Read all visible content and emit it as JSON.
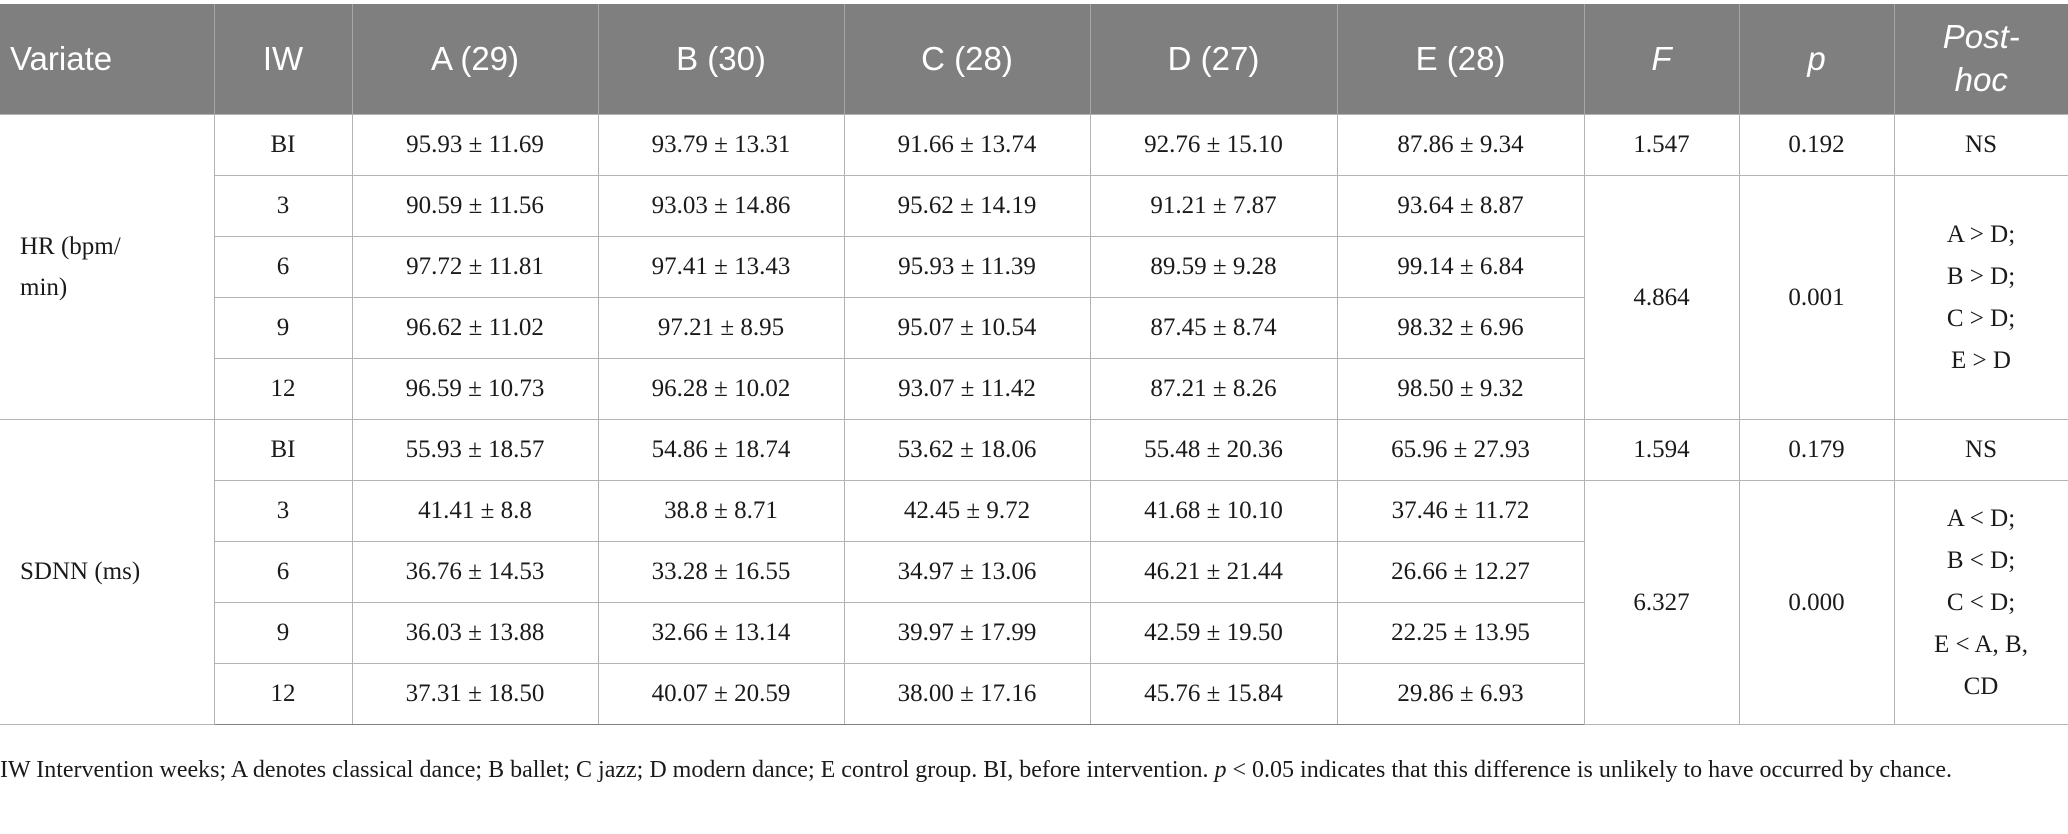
{
  "headers": [
    "Variate",
    "IW",
    "A (29)",
    "B (30)",
    "C (28)",
    "D (27)",
    "E (28)",
    "F",
    "p",
    "Post-hoc"
  ],
  "groups": [
    {
      "variate_lines": [
        "HR (bpm/",
        "min)"
      ],
      "rows": [
        {
          "iw": "BI",
          "a": "95.93 ± 11.69",
          "b": "93.79 ± 13.31",
          "c": "91.66 ± 13.74",
          "d": "92.76 ± 15.10",
          "e": "87.86 ± 9.34"
        },
        {
          "iw": "3",
          "a": "90.59 ± 11.56",
          "b": "93.03 ± 14.86",
          "c": "95.62 ± 14.19",
          "d": "91.21 ± 7.87",
          "e": "93.64 ± 8.87"
        },
        {
          "iw": "6",
          "a": "97.72 ± 11.81",
          "b": "97.41 ± 13.43",
          "c": "95.93 ± 11.39",
          "d": "89.59 ± 9.28",
          "e": "99.14 ± 6.84"
        },
        {
          "iw": "9",
          "a": "96.62 ± 11.02",
          "b": "97.21 ± 8.95",
          "c": "95.07 ± 10.54",
          "d": "87.45 ± 8.74",
          "e": "98.32 ± 6.96"
        },
        {
          "iw": "12",
          "a": "96.59 ± 10.73",
          "b": "96.28 ± 10.02",
          "c": "93.07 ± 11.42",
          "d": "87.21 ± 8.26",
          "e": "98.50 ± 9.32"
        }
      ],
      "bi_stats": {
        "f": "1.547",
        "p": "0.192",
        "posthoc": "NS"
      },
      "post_stats": {
        "f": "4.864",
        "p": "0.001",
        "posthoc_lines": [
          "A > D;",
          "B > D;",
          "C > D;",
          "E > D"
        ]
      }
    },
    {
      "variate_lines": [
        "SDNN (ms)"
      ],
      "rows": [
        {
          "iw": "BI",
          "a": "55.93 ± 18.57",
          "b": "54.86 ± 18.74",
          "c": "53.62 ± 18.06",
          "d": "55.48 ± 20.36",
          "e": "65.96 ± 27.93"
        },
        {
          "iw": "3",
          "a": "41.41 ± 8.8",
          "b": "38.8 ± 8.71",
          "c": "42.45 ± 9.72",
          "d": "41.68 ± 10.10",
          "e": "37.46 ± 11.72"
        },
        {
          "iw": "6",
          "a": "36.76 ± 14.53",
          "b": "33.28 ± 16.55",
          "c": "34.97 ± 13.06",
          "d": "46.21 ± 21.44",
          "e": "26.66 ± 12.27"
        },
        {
          "iw": "9",
          "a": "36.03 ± 13.88",
          "b": "32.66 ± 13.14",
          "c": "39.97 ± 17.99",
          "d": "42.59 ± 19.50",
          "e": "22.25 ± 13.95"
        },
        {
          "iw": "12",
          "a": "37.31 ± 18.50",
          "b": "40.07 ± 20.59",
          "c": "38.00 ± 17.16",
          "d": "45.76 ± 15.84",
          "e": "29.86 ± 6.93"
        }
      ],
      "bi_stats": {
        "f": "1.594",
        "p": "0.179",
        "posthoc": "NS"
      },
      "post_stats": {
        "f": "6.327",
        "p": "0.000",
        "posthoc_lines": [
          "A < D;",
          "B < D;",
          "C < D;",
          "E < A, B,",
          "CD"
        ]
      }
    }
  ],
  "footnote": {
    "before_p": "IW Intervention weeks; A denotes classical dance; B ballet; C jazz; D modern dance; E control group. BI, before intervention. ",
    "p_symbol": "p",
    "after_p": " < 0.05 indicates that this difference is unlikely to have occurred by chance."
  }
}
